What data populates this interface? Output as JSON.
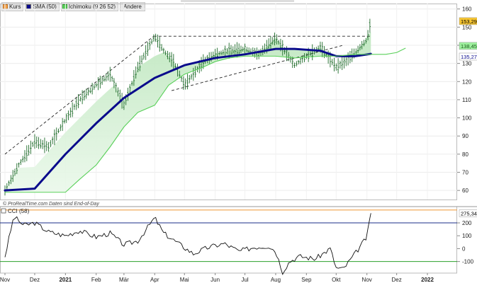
{
  "legend": {
    "kurs": "Kurs",
    "sma": "SMA (50)",
    "ichimoku": "Ichimoku (9 26 52)",
    "other": "Andere"
  },
  "watermark": "© ProRealTime.com  Daten sind End-of-Day",
  "cci_label": "CCI (58)",
  "colors": {
    "price": "#1e6b2a",
    "sma": "#0a0a8c",
    "cloud_fill": "#bfe7bf",
    "cloud_edge": "#5ad05a",
    "trendline": "#222222",
    "price_badge": "#f7c531",
    "ichi_badge": "#9ef09e",
    "sma_badge": "#0a0a8c",
    "cci_line": "#111111",
    "cci_upper": "#1b2e8a",
    "cci_lower": "#2aa02a",
    "cci_ob": "#f0a048"
  },
  "chart_data": [
    {
      "type": "line",
      "title": "",
      "x_ticks": [
        "Nov",
        "Dez",
        "2021",
        "Feb",
        "Mär",
        "Apr",
        "Mai",
        "Jun",
        "Jul",
        "Aug",
        "Sep",
        "Okt",
        "Nov",
        "Dez",
        "2022"
      ],
      "y_ticks": [
        60,
        70,
        80,
        90,
        100,
        110,
        120,
        130,
        140,
        150,
        160
      ],
      "ylim": [
        55,
        163
      ],
      "last_values": {
        "price": "153,29",
        "ichimoku": "138,45",
        "sma": "135,27"
      },
      "series": [
        {
          "key": "price",
          "x": [
            "2020-11-01",
            "2020-11-15",
            "2020-12-01",
            "2020-12-15",
            "2021-01-01",
            "2021-01-15",
            "2021-02-01",
            "2021-02-15",
            "2021-03-01",
            "2021-03-15",
            "2021-04-01",
            "2021-04-10",
            "2021-04-20",
            "2021-05-01",
            "2021-05-10",
            "2021-05-20",
            "2021-06-01",
            "2021-06-15",
            "2021-07-01",
            "2021-07-15",
            "2021-08-01",
            "2021-08-10",
            "2021-08-20",
            "2021-09-01",
            "2021-09-15",
            "2021-10-01",
            "2021-10-10",
            "2021-10-20",
            "2021-11-01",
            "2021-11-05"
          ],
          "values": [
            60,
            74,
            87,
            84,
            99,
            110,
            118,
            124,
            107,
            128,
            145,
            137,
            131,
            118,
            124,
            131,
            135,
            137,
            138,
            135,
            144,
            137,
            129,
            134,
            139,
            128,
            131,
            136,
            143,
            153.29
          ]
        },
        {
          "key": "sma",
          "x": [
            "2020-11-01",
            "2020-12-01",
            "2021-01-01",
            "2021-02-01",
            "2021-03-01",
            "2021-04-01",
            "2021-05-01",
            "2021-06-01",
            "2021-07-01",
            "2021-08-01",
            "2021-08-20",
            "2021-09-15",
            "2021-10-01",
            "2021-10-20",
            "2021-11-05"
          ],
          "values": [
            60,
            61,
            80,
            97,
            111,
            122,
            129,
            133,
            135,
            138,
            138,
            137,
            134,
            134,
            135.27
          ]
        },
        {
          "key": "ichimoku",
          "x": [
            "2020-11-01",
            "2020-12-01",
            "2020-12-15",
            "2021-01-01",
            "2021-01-15",
            "2021-02-01",
            "2021-02-15",
            "2021-03-01",
            "2021-03-15",
            "2021-04-01",
            "2021-04-15",
            "2021-05-01",
            "2021-05-20",
            "2021-06-01",
            "2021-06-15",
            "2021-07-01",
            "2021-08-01",
            "2021-08-20",
            "2021-09-15",
            "2021-10-01",
            "2021-10-20",
            "2021-11-05",
            "2021-11-20",
            "2021-12-01",
            "2021-12-10"
          ],
          "values": [
            59,
            59,
            59,
            59,
            66,
            74,
            84,
            95,
            103,
            107,
            118,
            124,
            128,
            131,
            133,
            134,
            134,
            133,
            134,
            134,
            135,
            135,
            135,
            136,
            138.45
          ]
        }
      ],
      "trendlines": [
        {
          "x": [
            "2020-11-01",
            "2021-03-31"
          ],
          "values": [
            80,
            145
          ]
        },
        {
          "x": [
            "2021-03-31",
            "2021-11-05"
          ],
          "values": [
            145,
            145
          ]
        },
        {
          "x": [
            "2021-04-18",
            "2021-10-08"
          ],
          "values": [
            115,
            140
          ]
        }
      ]
    },
    {
      "type": "line",
      "title": "",
      "y_ticks": [
        -100,
        0,
        100,
        200
      ],
      "ylim": [
        -190,
        310
      ],
      "last_value": "275,34",
      "levels": {
        "overbought": 300,
        "upper": 200,
        "lower": -100
      },
      "series": [
        {
          "key": "cci",
          "x": [
            "2020-11-01",
            "2020-11-10",
            "2020-11-20",
            "2020-12-01",
            "2020-12-15",
            "2021-01-01",
            "2021-01-15",
            "2021-02-01",
            "2021-02-15",
            "2021-03-01",
            "2021-03-15",
            "2021-04-01",
            "2021-04-10",
            "2021-04-25",
            "2021-05-10",
            "2021-05-25",
            "2021-06-10",
            "2021-06-25",
            "2021-07-10",
            "2021-07-25",
            "2021-08-01",
            "2021-08-08",
            "2021-08-15",
            "2021-08-25",
            "2021-09-10",
            "2021-09-25",
            "2021-10-01",
            "2021-10-08",
            "2021-10-20",
            "2021-11-01",
            "2021-11-05"
          ],
          "values": [
            -60,
            250,
            180,
            200,
            130,
            100,
            140,
            90,
            120,
            30,
            60,
            240,
            120,
            40,
            -40,
            10,
            40,
            -20,
            10,
            20,
            -20,
            -180,
            -100,
            -60,
            -80,
            0,
            -150,
            -160,
            -40,
            90,
            275.34
          ]
        }
      ]
    }
  ]
}
